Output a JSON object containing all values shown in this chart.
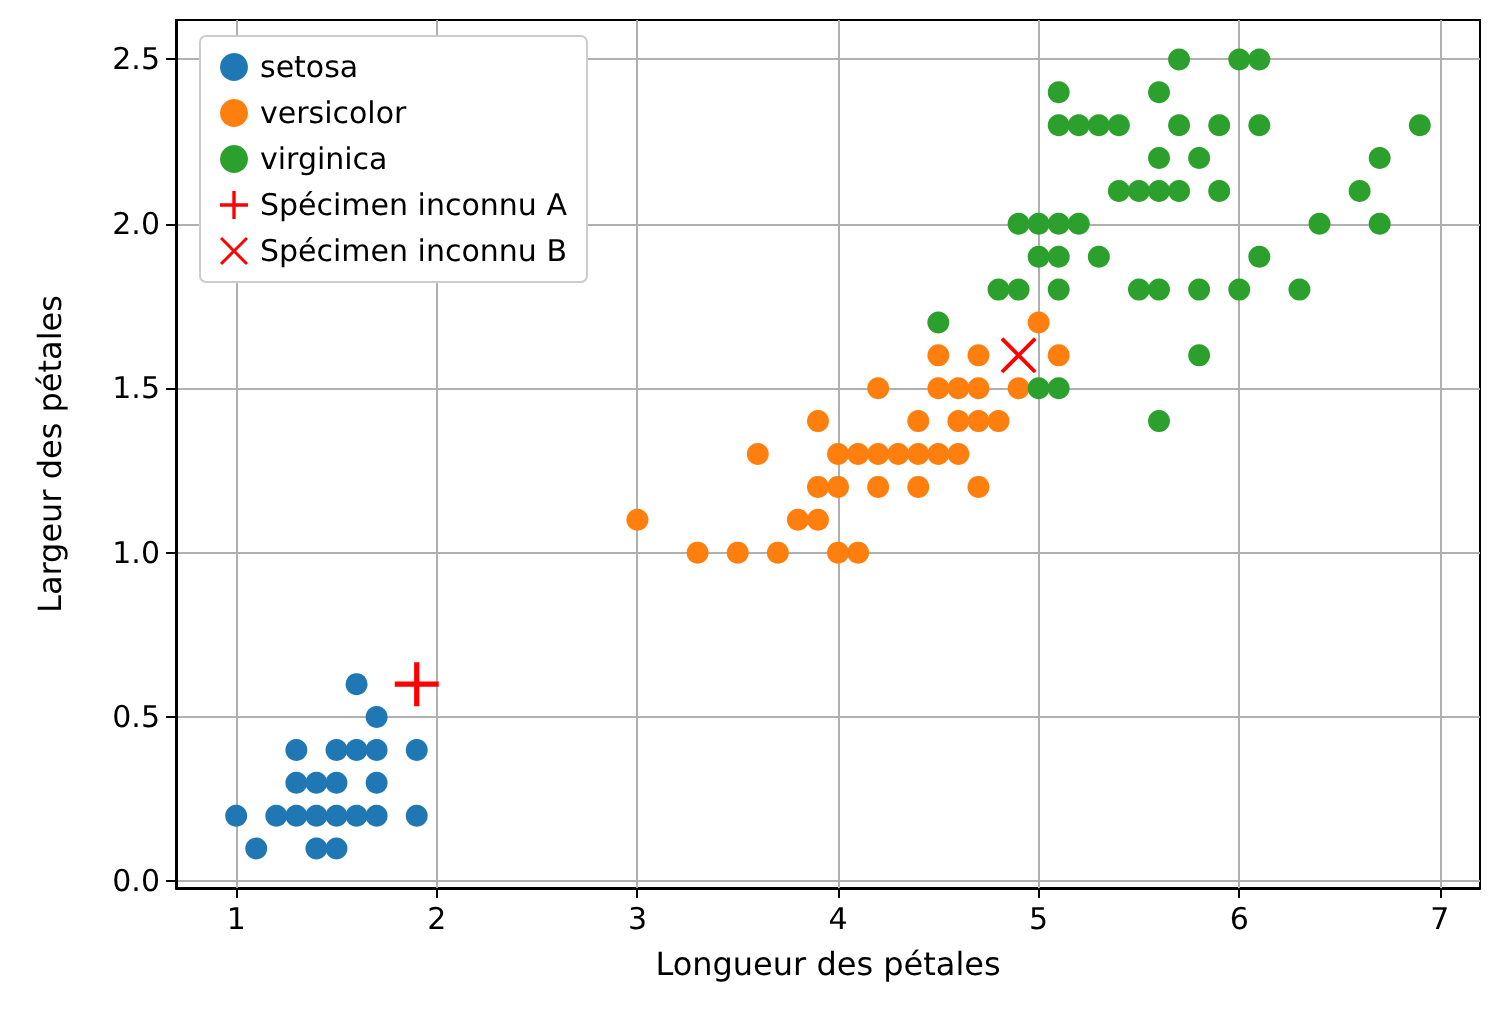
{
  "chart_data": {
    "type": "scatter",
    "xlabel": "Longueur des pétales",
    "ylabel": "Largeur des pétales",
    "xlim": [
      0.7,
      7.2
    ],
    "ylim": [
      -0.02,
      2.62
    ],
    "xticks": [
      1,
      2,
      3,
      4,
      5,
      6,
      7
    ],
    "yticks": [
      {
        "value": 0,
        "label": "0.0"
      },
      0.5,
      {
        "value": 1,
        "label": "1.0"
      },
      1.5,
      {
        "value": 2,
        "label": "2.0"
      },
      2.5
    ],
    "grid": true,
    "legend": "top left",
    "marker": "circle",
    "series": [
      {
        "name": "setosa",
        "color": "#1f77b4",
        "x": [
          1.4,
          1.3,
          1.5,
          1.7,
          1.4,
          1.5,
          1.6,
          1.4,
          1.1,
          1.2,
          1.5,
          1.3,
          1.7,
          1.5,
          1.7,
          1.0,
          1.7,
          1.9,
          1.6,
          1.3,
          1.6,
          1.9
        ],
        "values": [
          0.2,
          0.2,
          0.2,
          0.4,
          0.3,
          0.1,
          0.2,
          0.1,
          0.1,
          0.2,
          0.4,
          0.4,
          0.3,
          0.3,
          0.2,
          0.2,
          0.5,
          0.2,
          0.4,
          0.3,
          0.6,
          0.4
        ]
      },
      {
        "name": "versicolor",
        "color": "#ff7f0e",
        "x": [
          4.7,
          4.5,
          4.9,
          4.0,
          4.6,
          4.5,
          4.7,
          3.3,
          4.6,
          3.9,
          3.5,
          4.2,
          4.0,
          3.6,
          4.4,
          4.1,
          3.9,
          4.7,
          4.3,
          4.8,
          5.0,
          3.8,
          3.7,
          3.9,
          5.1,
          4.5,
          4.7,
          4.4,
          4.1,
          4.4,
          4.6,
          4.0,
          4.2,
          4.2,
          3.0
        ],
        "values": [
          1.4,
          1.5,
          1.5,
          1.3,
          1.5,
          1.3,
          1.6,
          1.0,
          1.3,
          1.4,
          1.0,
          1.5,
          1.0,
          1.3,
          1.4,
          1.0,
          1.1,
          1.2,
          1.3,
          1.4,
          1.7,
          1.1,
          1.0,
          1.2,
          1.6,
          1.6,
          1.5,
          1.3,
          1.3,
          1.2,
          1.4,
          1.2,
          1.3,
          1.2,
          1.1
        ]
      },
      {
        "name": "virginica",
        "color": "#2ca02c",
        "x": [
          6.0,
          5.1,
          5.9,
          5.6,
          5.8,
          6.6,
          4.5,
          6.3,
          5.8,
          6.1,
          5.1,
          5.3,
          5.5,
          5.0,
          5.1,
          5.3,
          5.5,
          6.7,
          6.9,
          5.0,
          5.7,
          4.9,
          6.7,
          4.9,
          5.7,
          6.0,
          4.8,
          5.6,
          5.8,
          6.1,
          6.4,
          5.6,
          5.1,
          5.6,
          6.1,
          5.6,
          5.4,
          5.1,
          5.9,
          5.7,
          5.2,
          5.0,
          5.2,
          5.4,
          5.1
        ],
        "values": [
          2.5,
          1.9,
          2.1,
          1.8,
          2.2,
          2.1,
          1.7,
          1.8,
          1.8,
          2.5,
          2.0,
          1.9,
          2.1,
          2.0,
          2.4,
          2.3,
          1.8,
          2.2,
          2.3,
          1.5,
          2.3,
          2.0,
          2.0,
          1.8,
          2.1,
          1.8,
          1.8,
          2.1,
          1.6,
          1.9,
          2.0,
          2.2,
          1.5,
          1.4,
          2.3,
          2.4,
          2.1,
          2.3,
          2.3,
          2.5,
          2.3,
          1.9,
          2.0,
          2.3,
          1.8
        ]
      },
      {
        "name": "Spécimen inconnu A",
        "color": "#ff0000",
        "marker": "plus",
        "x": [
          1.9
        ],
        "values": [
          0.6
        ]
      },
      {
        "name": "Spécimen inconnu B",
        "color": "#ff0000",
        "marker": "cross",
        "x": [
          4.9
        ],
        "values": [
          1.6
        ]
      }
    ]
  }
}
